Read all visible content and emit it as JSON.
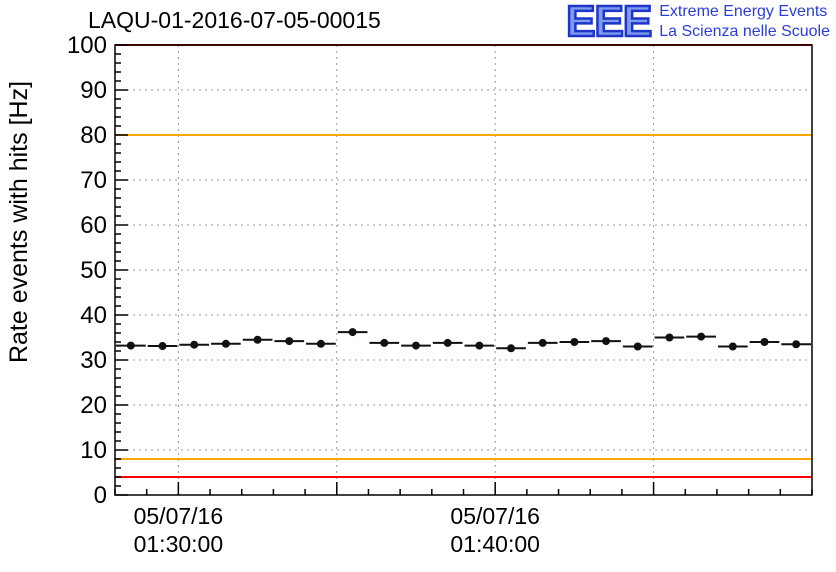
{
  "header": {
    "title": "LAQU-01-2016-07-05-00015",
    "logo": {
      "text": "EEE",
      "tagline1": "Extreme Energy Events",
      "tagline2": "La Scienza nelle Scuole",
      "brand_color": "#2b3fd6"
    }
  },
  "chart_data": {
    "type": "line",
    "title": "LAQU-01-2016-07-05-00015",
    "xlabel": "",
    "ylabel": "Rate events with hits [Hz]",
    "ylim": [
      0,
      100
    ],
    "yticks": [
      0,
      10,
      20,
      30,
      40,
      50,
      60,
      70,
      80,
      90,
      100
    ],
    "y_minor_step": 2,
    "xlim": [
      0,
      22
    ],
    "x_minor_step": 1,
    "x_major_ticks": [
      2,
      7,
      12,
      17
    ],
    "x_tick_labels": [
      {
        "pos": 2,
        "date": "05/07/16",
        "time": "01:30:00"
      },
      {
        "pos": 12,
        "date": "05/07/16",
        "time": "01:40:00"
      }
    ],
    "grid": true,
    "grid_color": "#999999",
    "frame_color": "#000000",
    "threshold_lines": [
      {
        "y": 100,
        "color": "#ff0000"
      },
      {
        "y": 80,
        "color": "#ffa500"
      },
      {
        "y": 8,
        "color": "#ffa500"
      },
      {
        "y": 4,
        "color": "#ff0000"
      }
    ],
    "series": [
      {
        "name": "rate-events-with-hits",
        "marker_color": "#111111",
        "bin_half_width": 0.5,
        "x": [
          0.5,
          1.5,
          2.5,
          3.5,
          4.5,
          5.5,
          6.5,
          7.5,
          8.5,
          9.5,
          10.5,
          11.5,
          12.5,
          13.5,
          14.5,
          15.5,
          16.5,
          17.5,
          18.5,
          19.5,
          20.5,
          21.5
        ],
        "values": [
          33.2,
          33.1,
          33.4,
          33.6,
          34.5,
          34.2,
          33.6,
          36.2,
          33.8,
          33.2,
          33.8,
          33.2,
          32.6,
          33.8,
          34.0,
          34.2,
          33.0,
          35.0,
          35.2,
          33.0,
          34.0,
          33.5
        ]
      }
    ]
  }
}
